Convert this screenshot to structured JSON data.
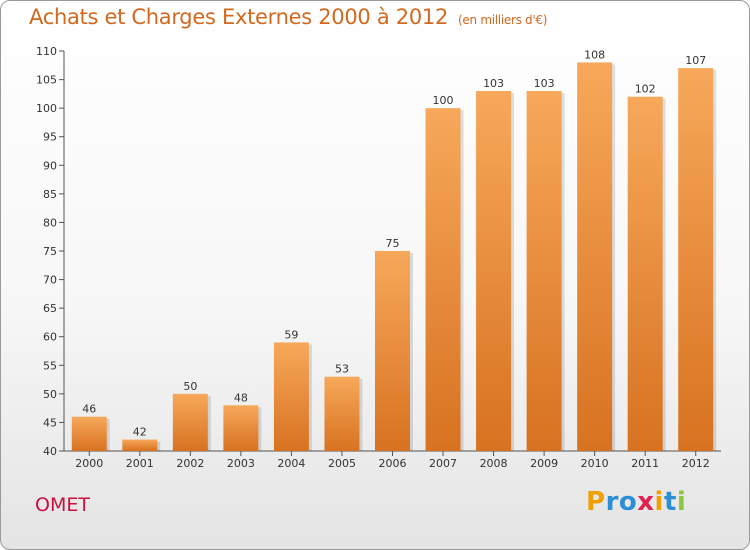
{
  "header": {
    "title": "Achats et Charges Externes 2000 à 2012",
    "unit": "(en milliers d'€)"
  },
  "footer": {
    "commune": "OMET",
    "logo_letters": [
      "P",
      "r",
      "o",
      "x",
      "i",
      "t",
      "i"
    ],
    "logo_colors": [
      "#f0a000",
      "#2b8fd6",
      "#2b8fd6",
      "#e2214e",
      "#f0a000",
      "#2b8fd6",
      "#8cc63f"
    ]
  },
  "colors": {
    "bar_top": "#f7a85a",
    "bar_bottom": "#d77220",
    "accent": "#d2691e"
  },
  "chart_data": {
    "type": "bar",
    "title": "Achats et Charges Externes 2000 à 2012",
    "subtitle": "(en milliers d'€)",
    "categories": [
      "2000",
      "2001",
      "2002",
      "2003",
      "2004",
      "2005",
      "2006",
      "2007",
      "2008",
      "2009",
      "2010",
      "2011",
      "2012"
    ],
    "values": [
      46,
      42,
      50,
      48,
      59,
      53,
      75,
      100,
      103,
      103,
      108,
      102,
      107
    ],
    "ylim": [
      40,
      110
    ],
    "yticks": [
      40,
      45,
      50,
      55,
      60,
      65,
      70,
      75,
      80,
      85,
      90,
      95,
      100,
      105,
      110
    ],
    "grid": false,
    "data_labels": true
  }
}
